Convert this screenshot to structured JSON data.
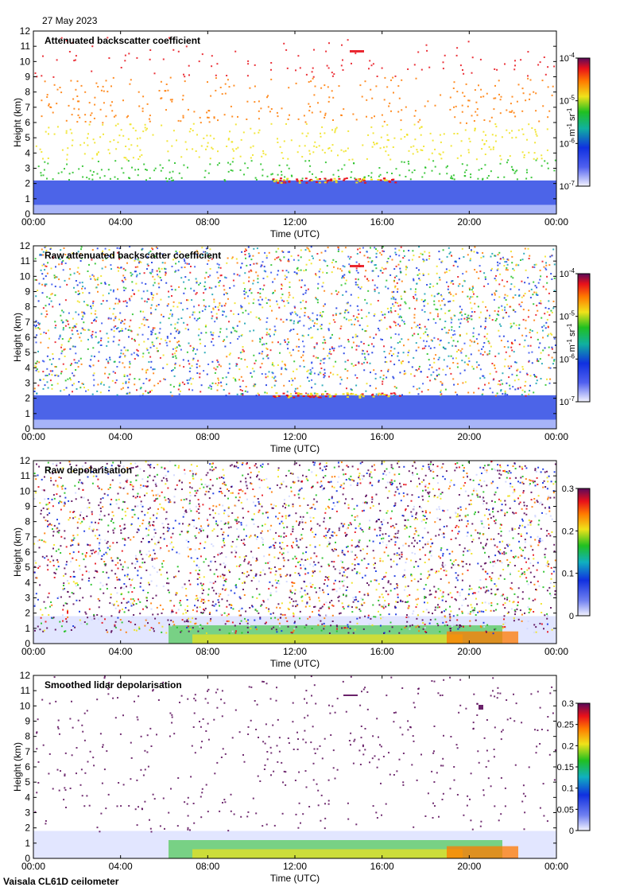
{
  "header": {
    "date": "27 May 2023"
  },
  "footer": {
    "instrument": "Vaisala CL61D ceilometer"
  },
  "colors": {
    "purple": "#5a0a5a",
    "red": "#e8101a",
    "orange": "#ff7a00",
    "yellow": "#f0e21a",
    "green": "#20c020",
    "blue": "#1030e0",
    "light_blue": "#cfd6ff",
    "background": "#ffffff"
  },
  "chart_data": [
    {
      "type": "heatmap",
      "title": "Attenuated backscatter coefficient",
      "xlabel": "Time (UTC)",
      "ylabel": "Height (km)",
      "x_ticks": [
        "00:00",
        "04:00",
        "08:00",
        "12:00",
        "16:00",
        "20:00",
        "00:00"
      ],
      "ylim": [
        0,
        12
      ],
      "y_ticks": [
        0,
        1,
        2,
        3,
        4,
        5,
        6,
        7,
        8,
        9,
        10,
        11,
        12
      ],
      "colorbar": {
        "scale": "log",
        "ticks_mantissa": [
          "10",
          "10",
          "10",
          "10"
        ],
        "ticks_exponent": [
          "-7",
          "-6",
          "-5",
          "-4"
        ],
        "unit_text": "m",
        "unit_exp1": "-1",
        "unit_text2": " sr",
        "unit_exp2": "-1"
      }
    },
    {
      "type": "heatmap",
      "title": "Raw attenuated backscatter coefficient",
      "xlabel": "Time (UTC)",
      "ylabel": "Height (km)",
      "x_ticks": [
        "00:00",
        "04:00",
        "08:00",
        "12:00",
        "16:00",
        "20:00",
        "00:00"
      ],
      "ylim": [
        0,
        12
      ],
      "y_ticks": [
        0,
        1,
        2,
        3,
        4,
        5,
        6,
        7,
        8,
        9,
        10,
        11,
        12
      ],
      "colorbar": {
        "scale": "log",
        "ticks_mantissa": [
          "10",
          "10",
          "10",
          "10"
        ],
        "ticks_exponent": [
          "-7",
          "-6",
          "-5",
          "-4"
        ],
        "unit_text": "m",
        "unit_exp1": "-1",
        "unit_text2": " sr",
        "unit_exp2": "-1"
      }
    },
    {
      "type": "heatmap",
      "title": "Raw depolarisation",
      "xlabel": "Time (UTC)",
      "ylabel": "Height (km)",
      "x_ticks": [
        "00:00",
        "04:00",
        "08:00",
        "12:00",
        "16:00",
        "20:00",
        "00:00"
      ],
      "ylim": [
        0,
        12
      ],
      "y_ticks": [
        0,
        1,
        2,
        3,
        4,
        5,
        6,
        7,
        8,
        9,
        10,
        11,
        12
      ],
      "colorbar": {
        "scale": "linear",
        "range": [
          0,
          0.3
        ],
        "ticks": [
          "0",
          "0.1",
          "0.2",
          "0.3"
        ]
      }
    },
    {
      "type": "heatmap",
      "title": "Smoothed lidar depolarisation",
      "xlabel": "Time (UTC)",
      "ylabel": "Height (km)",
      "x_ticks": [
        "00:00",
        "04:00",
        "08:00",
        "12:00",
        "16:00",
        "20:00",
        "00:00"
      ],
      "ylim": [
        0,
        12
      ],
      "y_ticks": [
        0,
        1,
        2,
        3,
        4,
        5,
        6,
        7,
        8,
        9,
        10,
        11,
        12
      ],
      "colorbar": {
        "scale": "linear",
        "range": [
          0,
          0.3
        ],
        "ticks": [
          "0",
          "0.05",
          "0.1",
          "0.15",
          "0.2",
          "0.25",
          "0.3"
        ]
      }
    }
  ]
}
